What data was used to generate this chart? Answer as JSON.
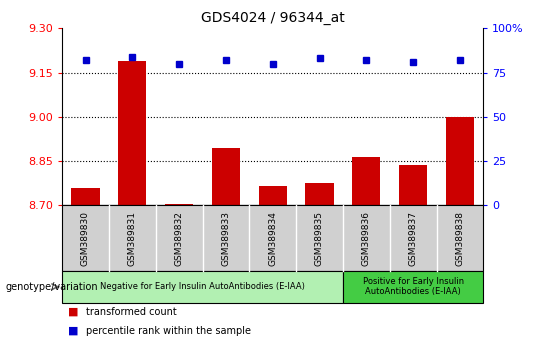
{
  "title": "GDS4024 / 96344_at",
  "samples": [
    "GSM389830",
    "GSM389831",
    "GSM389832",
    "GSM389833",
    "GSM389834",
    "GSM389835",
    "GSM389836",
    "GSM389837",
    "GSM389838"
  ],
  "bar_values": [
    8.76,
    9.19,
    8.705,
    8.895,
    8.765,
    8.775,
    8.865,
    8.835,
    9.0
  ],
  "percentile_values": [
    82,
    84,
    80,
    82,
    80,
    83,
    82,
    81,
    82
  ],
  "ylim_left": [
    8.7,
    9.3
  ],
  "ylim_right": [
    0,
    100
  ],
  "yticks_left": [
    8.7,
    8.85,
    9.0,
    9.15,
    9.3
  ],
  "yticks_right": [
    0,
    25,
    50,
    75,
    100
  ],
  "bar_color": "#cc0000",
  "dot_color": "#0000cc",
  "group1_label": "Negative for Early Insulin AutoAntibodies (E-IAA)",
  "group2_label": "Positive for Early Insulin\nAutoAntibodies (E-IAA)",
  "group1_color": "#b2f0b2",
  "group2_color": "#44cc44",
  "group1_n": 6,
  "group2_n": 3,
  "genotype_label": "genotype/variation",
  "legend_bar_label": "transformed count",
  "legend_dot_label": "percentile rank within the sample",
  "tick_bg_color": "#d0d0d0",
  "n_samples": 9
}
